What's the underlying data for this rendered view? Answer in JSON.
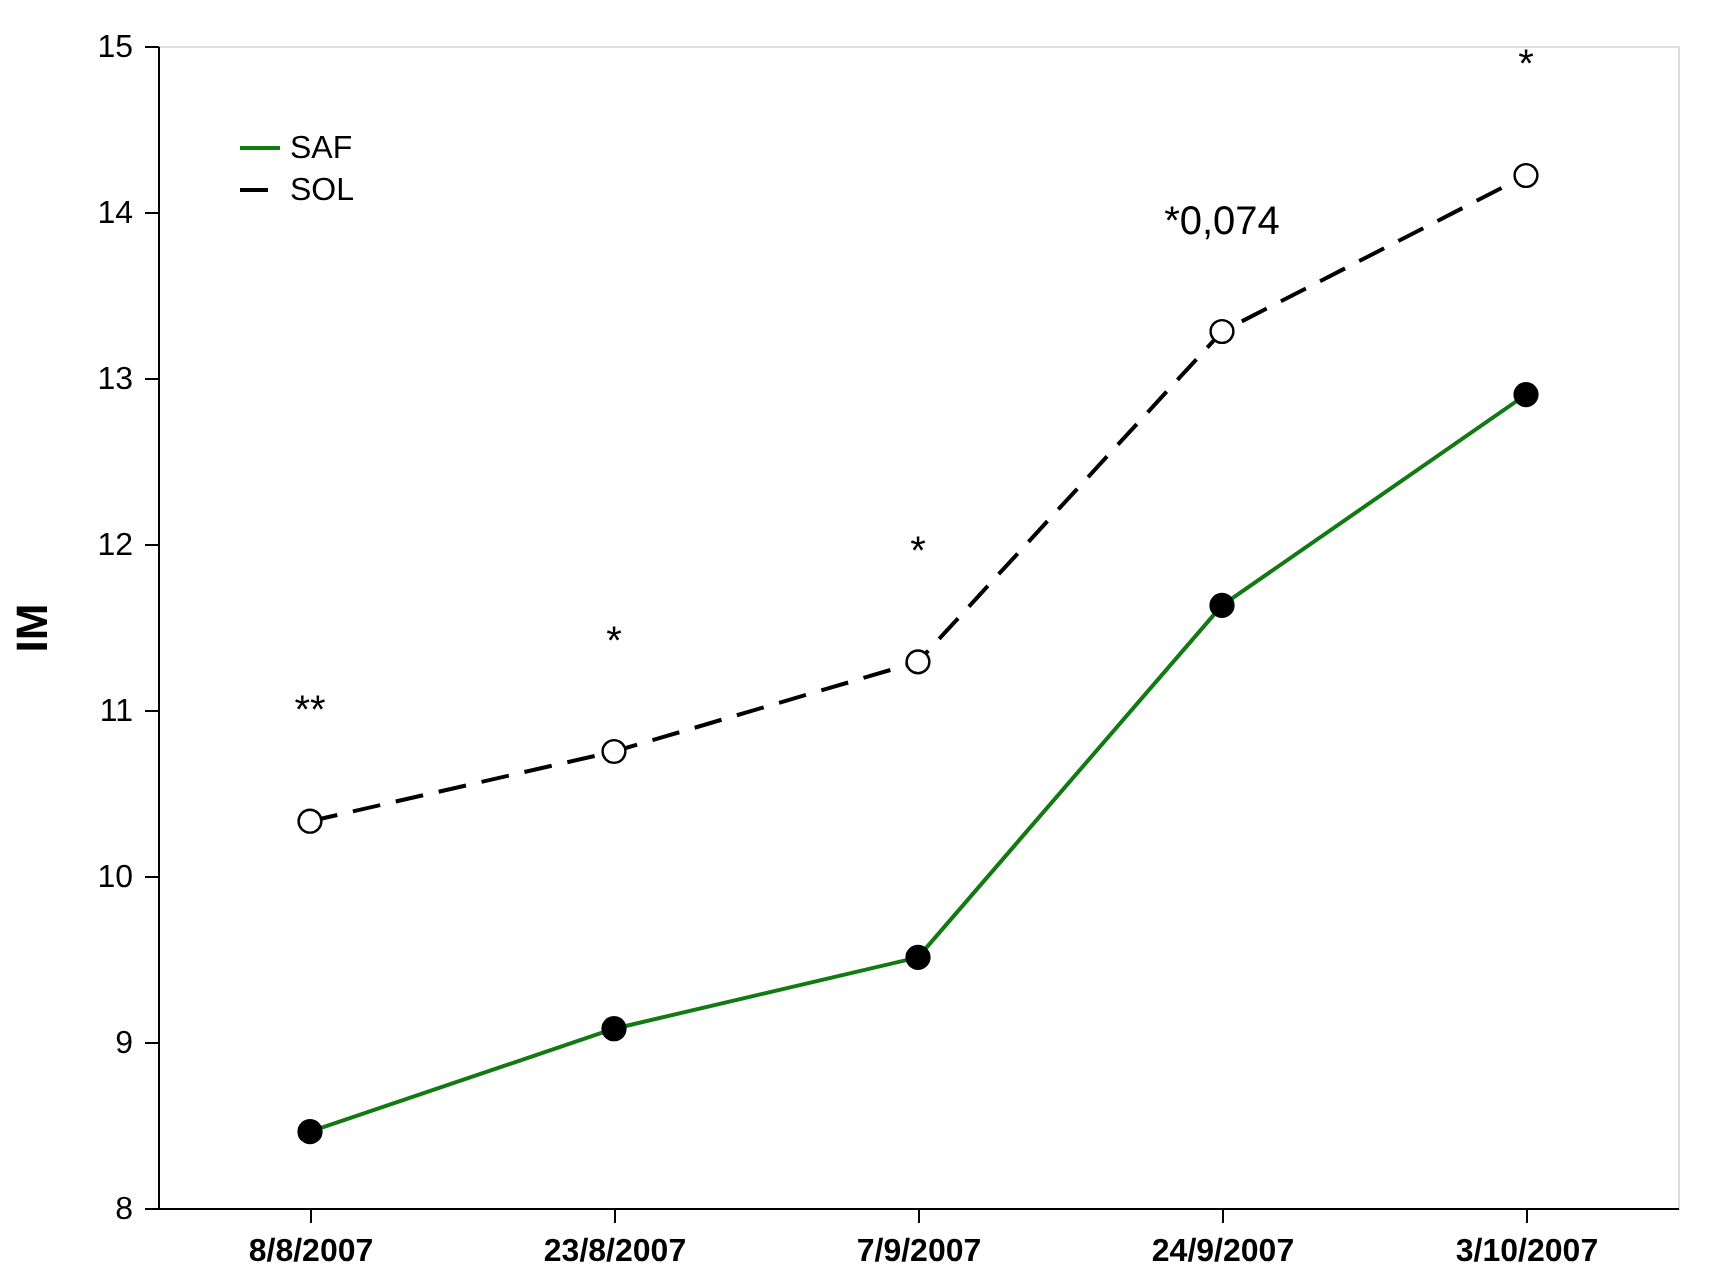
{
  "chart_data": {
    "type": "line",
    "ylabel": "IM",
    "categories": [
      "8/8/2007",
      "23/8/2007",
      "7/9/2007",
      "24/9/2007",
      "3/10/2007"
    ],
    "series": [
      {
        "name": "SAF",
        "color": "#127a12",
        "values": [
          8.46,
          9.08,
          9.51,
          11.63,
          12.9
        ],
        "line_style": "solid"
      },
      {
        "name": "SOL",
        "color": "#000000",
        "values": [
          10.33,
          10.75,
          11.29,
          13.28,
          14.22
        ],
        "line_style": "dashed"
      }
    ],
    "marker": "circle",
    "ylim": [
      8,
      15
    ],
    "yticks": [
      8,
      9,
      10,
      11,
      12,
      13,
      14,
      15
    ],
    "grid": false,
    "legend": "top left",
    "annotations": [
      "**",
      "*",
      "*",
      "*0,074",
      "*"
    ]
  }
}
